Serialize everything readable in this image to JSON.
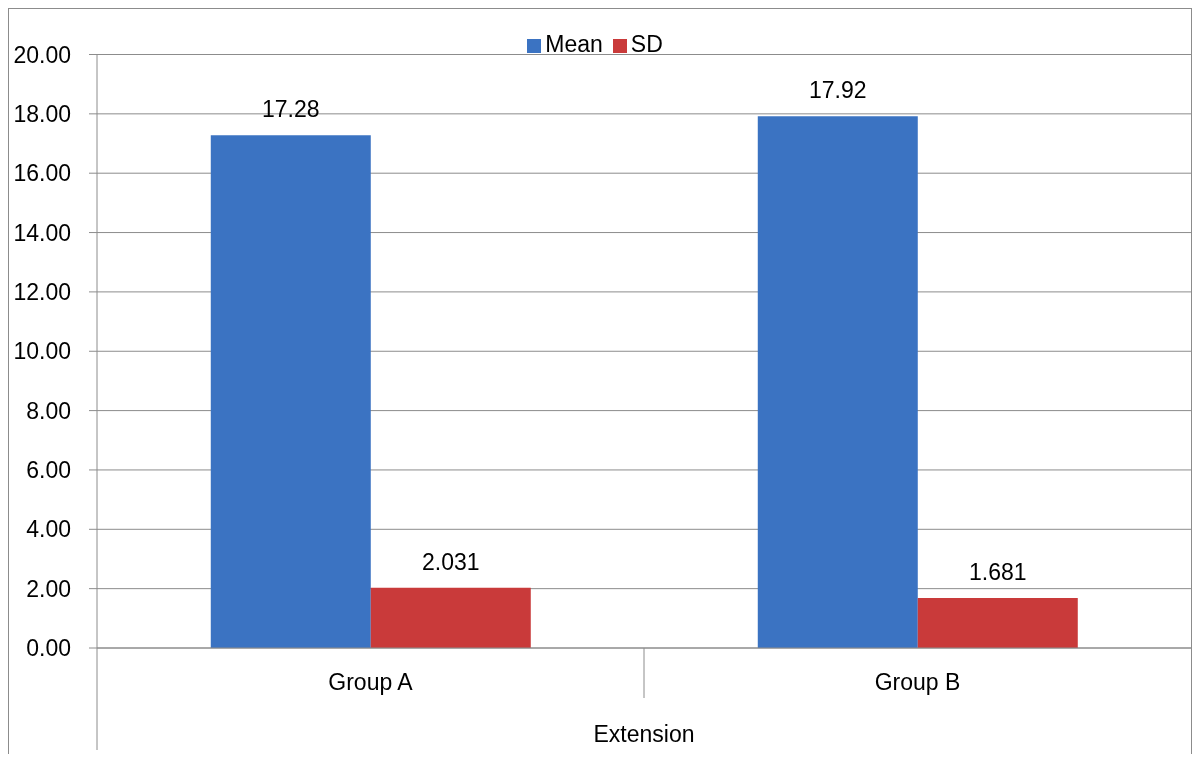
{
  "chart_data": {
    "type": "bar",
    "categories": [
      "Group A",
      "Group B"
    ],
    "series": [
      {
        "name": "Mean",
        "color": "#3b73c2",
        "values": [
          17.28,
          17.92
        ]
      },
      {
        "name": "SD",
        "color": "#c93a3a",
        "values": [
          2.031,
          1.681
        ]
      }
    ],
    "xlabel": "Extension",
    "ylim": [
      0,
      20
    ],
    "yticks": [
      {
        "value": 0,
        "label": "0.00"
      },
      {
        "value": 2,
        "label": "2.00"
      },
      {
        "value": 4,
        "label": "4.00"
      },
      {
        "value": 6,
        "label": "6.00"
      },
      {
        "value": 8,
        "label": "8.00"
      },
      {
        "value": 10,
        "label": "10.00"
      },
      {
        "value": 12,
        "label": "12.00"
      },
      {
        "value": 14,
        "label": "14.00"
      },
      {
        "value": 16,
        "label": "16.00"
      },
      {
        "value": 18,
        "label": "18.00"
      },
      {
        "value": 20,
        "label": "20.00"
      }
    ],
    "grid": "y",
    "legend": "top",
    "data_labels": true
  }
}
